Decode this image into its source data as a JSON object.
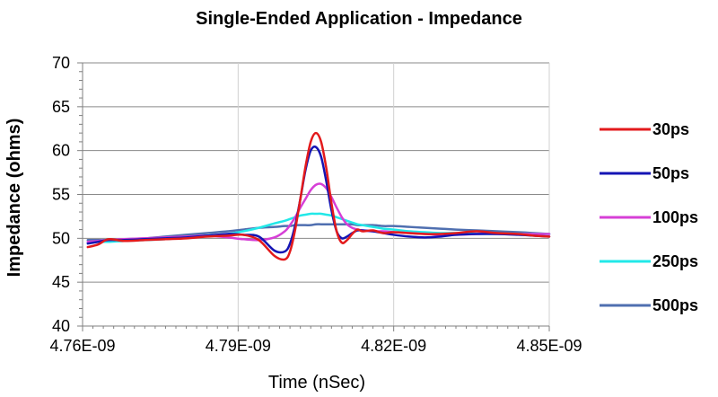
{
  "chart_data": {
    "type": "line",
    "title": "Single-Ended Application - Impedance",
    "xlabel": "Time (nSec)",
    "ylabel": "Impedance (ohms)",
    "xlim": [
      4.76e-09,
      4.85e-09
    ],
    "ylim": [
      40,
      70
    ],
    "x_ticks": [
      4.76e-09,
      4.79e-09,
      4.82e-09,
      4.85e-09
    ],
    "x_tick_labels": [
      "4.76E-09",
      "4.79E-09",
      "4.82E-09",
      "4.85E-09"
    ],
    "y_ticks": [
      40,
      45,
      50,
      55,
      60,
      65,
      70
    ],
    "y_tick_labels": [
      "40",
      "45",
      "50",
      "55",
      "60",
      "65",
      "70"
    ],
    "grid": {
      "vertical": true,
      "horizontal": true
    },
    "legend_position": "right",
    "x": [
      4.761e-09,
      4.763e-09,
      4.765e-09,
      4.768e-09,
      4.772e-09,
      4.776e-09,
      4.78e-09,
      4.784e-09,
      4.788e-09,
      4.791e-09,
      4.794e-09,
      4.797e-09,
      4.799e-09,
      4.8e-09,
      4.801e-09,
      4.802e-09,
      4.803e-09,
      4.804e-09,
      4.805e-09,
      4.806e-09,
      4.807e-09,
      4.808e-09,
      4.809e-09,
      4.81e-09,
      4.811e-09,
      4.812e-09,
      4.813e-09,
      4.814e-09,
      4.816e-09,
      4.818e-09,
      4.82e-09,
      4.823e-09,
      4.826e-09,
      4.829e-09,
      4.832e-09,
      4.836e-09,
      4.84e-09,
      4.844e-09,
      4.847e-09,
      4.85e-09
    ],
    "series": [
      {
        "name": "30ps",
        "color": "#e31a1c",
        "values": [
          49.0,
          49.3,
          49.9,
          49.7,
          49.8,
          49.9,
          50.0,
          50.2,
          50.3,
          50.4,
          49.8,
          48.0,
          47.6,
          48.5,
          51.0,
          54.5,
          58.2,
          61.0,
          62.0,
          61.0,
          58.0,
          54.0,
          50.8,
          49.5,
          49.8,
          50.5,
          51.0,
          50.8,
          50.9,
          50.6,
          50.7,
          50.6,
          50.5,
          50.5,
          50.6,
          50.8,
          50.6,
          50.5,
          50.3,
          50.2
        ]
      },
      {
        "name": "50ps",
        "color": "#1414b4",
        "values": [
          49.4,
          49.6,
          49.8,
          49.8,
          49.9,
          50.0,
          50.1,
          50.3,
          50.5,
          50.4,
          50.2,
          48.6,
          48.5,
          49.4,
          51.5,
          54.5,
          57.8,
          60.0,
          60.4,
          59.3,
          56.5,
          53.2,
          50.8,
          50.0,
          50.2,
          50.6,
          50.9,
          50.9,
          50.8,
          50.6,
          50.4,
          50.2,
          50.1,
          50.2,
          50.4,
          50.5,
          50.5,
          50.4,
          50.3,
          50.2
        ]
      },
      {
        "name": "100ps",
        "color": "#d63fd6",
        "values": [
          49.6,
          49.7,
          49.8,
          49.9,
          50.0,
          50.1,
          50.2,
          50.3,
          50.1,
          49.9,
          49.8,
          50.1,
          50.8,
          51.5,
          52.4,
          53.5,
          54.5,
          55.5,
          56.1,
          56.2,
          55.7,
          54.7,
          53.5,
          52.4,
          51.6,
          51.2,
          51.0,
          50.9,
          50.8,
          50.8,
          50.7,
          50.6,
          50.5,
          50.4,
          50.4,
          50.5,
          50.5,
          50.5,
          50.5,
          50.5
        ]
      },
      {
        "name": "250ps",
        "color": "#22e8e8",
        "values": [
          49.5,
          49.6,
          49.6,
          49.7,
          49.8,
          49.9,
          50.1,
          50.3,
          50.5,
          50.8,
          51.2,
          51.7,
          52.0,
          52.2,
          52.4,
          52.6,
          52.7,
          52.8,
          52.8,
          52.8,
          52.7,
          52.6,
          52.4,
          52.2,
          52.0,
          51.8,
          51.6,
          51.5,
          51.3,
          51.1,
          51.0,
          50.8,
          50.7,
          50.6,
          50.6,
          50.5,
          50.5,
          50.5,
          50.5,
          50.5
        ]
      },
      {
        "name": "500ps",
        "color": "#4f6fb0",
        "values": [
          49.8,
          49.8,
          49.8,
          49.9,
          50.0,
          50.2,
          50.4,
          50.6,
          50.8,
          51.0,
          51.2,
          51.3,
          51.4,
          51.4,
          51.5,
          51.5,
          51.5,
          51.5,
          51.6,
          51.6,
          51.6,
          51.6,
          51.6,
          51.6,
          51.6,
          51.6,
          51.5,
          51.5,
          51.5,
          51.4,
          51.4,
          51.3,
          51.2,
          51.1,
          51.0,
          50.9,
          50.8,
          50.7,
          50.6,
          50.5
        ]
      }
    ]
  }
}
